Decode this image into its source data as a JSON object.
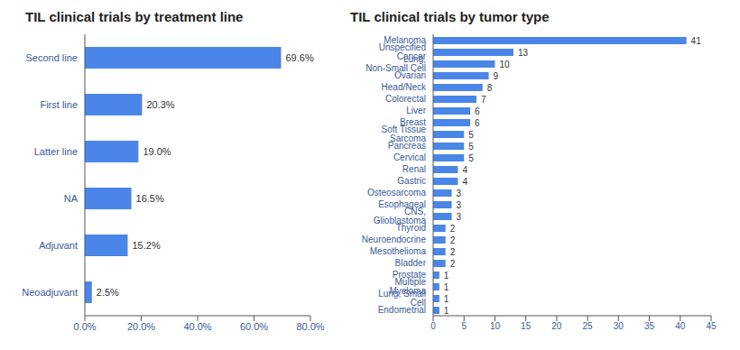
{
  "chart_data": [
    {
      "type": "bar",
      "orientation": "horizontal",
      "title": "TIL clinical trials by treatment line",
      "categories": [
        "Second line",
        "First line",
        "Latter line",
        "NA",
        "Adjuvant",
        "Neoadjuvant"
      ],
      "values": [
        69.6,
        20.3,
        19.0,
        16.5,
        15.2,
        2.5
      ],
      "value_labels": [
        "69.6%",
        "20.3%",
        "19.0%",
        "16.5%",
        "15.2%",
        "2.5%"
      ],
      "data_labels": true,
      "color": "#4a86e8",
      "grid": false,
      "xlim": [
        0,
        80
      ],
      "xticks": [
        {
          "value": 0,
          "label": "0.0%"
        },
        {
          "value": 20,
          "label": "20.0%"
        },
        {
          "value": 40,
          "label": "40.0%"
        },
        {
          "value": 60,
          "label": "60.0%"
        },
        {
          "value": 80,
          "label": "80.0%"
        }
      ]
    },
    {
      "type": "bar",
      "orientation": "horizontal",
      "title": "TIL clinical trials by tumor type",
      "categories": [
        "Melanoma",
        "Unspecified Cancer",
        "Lung, Non-Small Cell",
        "Ovarian",
        "Head/Neck",
        "Colorectal",
        "Liver",
        "Breast",
        "Soft Tissue Sarcoma",
        "Pancreas",
        "Cervical",
        "Renal",
        "Gastric",
        "Osteosarcoma",
        "Esophageal",
        "CNS, Glioblastoma",
        "Thyroid",
        "Neuroendocrine",
        "Mesothelioma",
        "Bladder",
        "Prostate",
        "Multiple Myeloma",
        "Lung, Small Cell",
        "Endometrial"
      ],
      "values": [
        41,
        13,
        10,
        9,
        8,
        7,
        6,
        6,
        5,
        5,
        5,
        4,
        4,
        3,
        3,
        3,
        2,
        2,
        2,
        2,
        1,
        1,
        1,
        1
      ],
      "data_labels": true,
      "color": "#4a86e8",
      "grid": false,
      "xlim": [
        0,
        45
      ],
      "xticks": [
        0,
        5,
        10,
        15,
        20,
        25,
        30,
        35,
        40,
        45
      ]
    }
  ]
}
